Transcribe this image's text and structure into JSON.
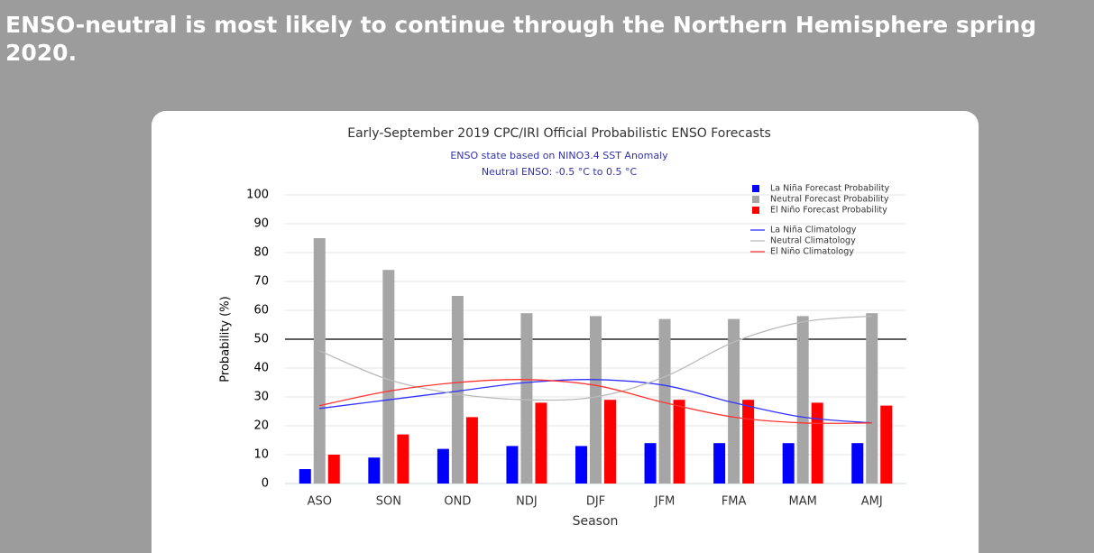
{
  "headline": "ENSO-neutral is most likely to continue through the Northern Hemisphere spring 2020.",
  "chart_data": {
    "type": "bar",
    "title": "Early-September 2019 CPC/IRI Official Probabilistic ENSO Forecasts",
    "subtitle": [
      "ENSO state based on NINO3.4 SST Anomaly",
      "Neutral ENSO: -0.5 °C to 0.5 °C"
    ],
    "x_label": "Season",
    "y_label": "Probability (%)",
    "categories": [
      "ASO",
      "SON",
      "OND",
      "NDJ",
      "DJF",
      "JFM",
      "FMA",
      "MAM",
      "AMJ"
    ],
    "series": [
      {
        "name": "La Niña Forecast Probability",
        "color": "#0000ff",
        "values": [
          5,
          9,
          12,
          13,
          13,
          14,
          14,
          14,
          14
        ]
      },
      {
        "name": "Neutral Forecast Probability",
        "color": "#a6a6a6",
        "values": [
          85,
          74,
          65,
          59,
          58,
          57,
          57,
          58,
          59
        ]
      },
      {
        "name": "El Niño Forecast Probability",
        "color": "#ff0000",
        "values": [
          10,
          17,
          23,
          28,
          29,
          29,
          29,
          28,
          27
        ]
      }
    ],
    "lines": [
      {
        "name": "La Niña Climatology",
        "color": "#3333ff",
        "values": [
          26,
          29,
          32,
          35,
          36,
          34,
          28,
          23,
          21
        ]
      },
      {
        "name": "Neutral Climatology",
        "color": "#bbbbbb",
        "values": [
          46,
          36,
          31,
          29,
          30,
          37,
          49,
          56,
          58
        ]
      },
      {
        "name": "El Niño Climatology",
        "color": "#ff3333",
        "values": [
          27,
          32,
          35,
          36,
          34,
          28,
          23,
          21,
          21
        ]
      }
    ],
    "reference_line": 50,
    "ylim": [
      0,
      100
    ],
    "yticks": [
      0,
      10,
      20,
      30,
      40,
      50,
      60,
      70,
      80,
      90,
      100
    ],
    "grid": true,
    "legend": "top-right"
  }
}
